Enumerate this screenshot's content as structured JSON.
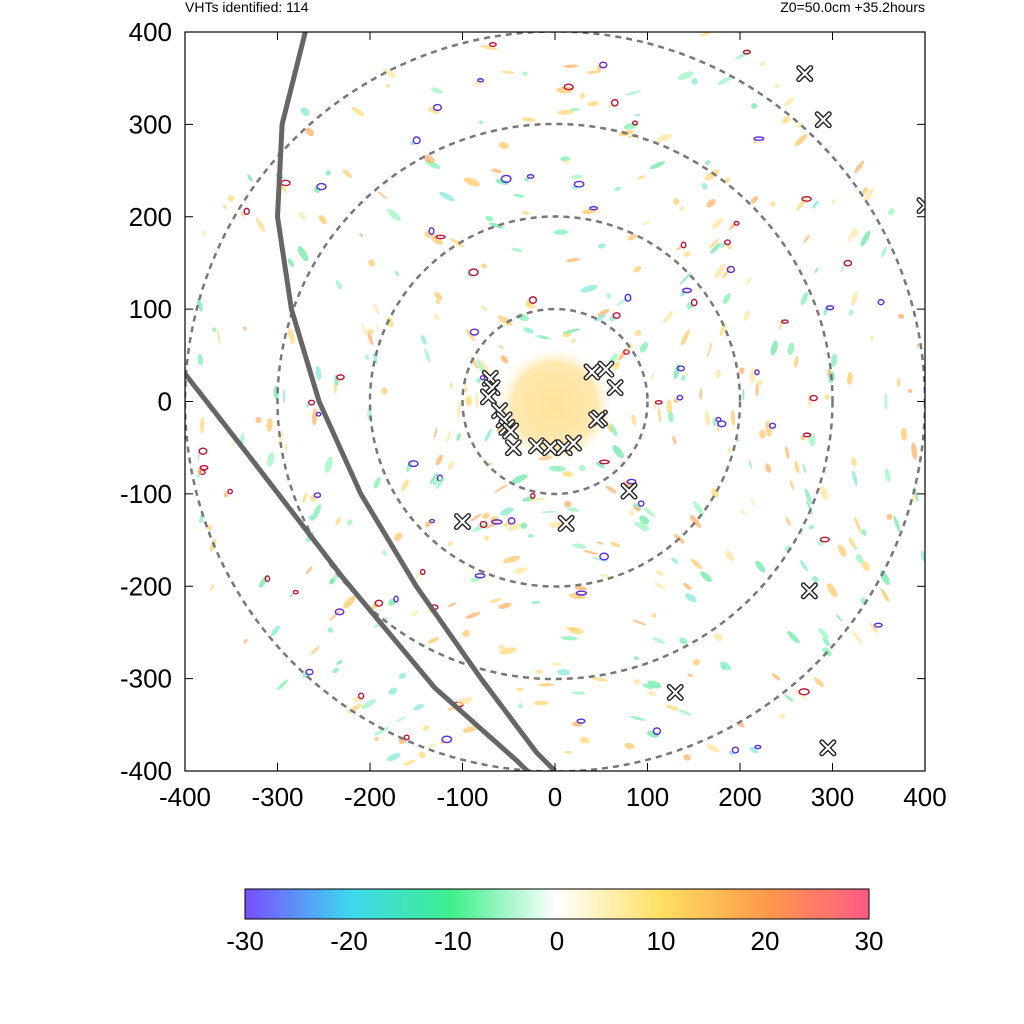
{
  "header": {
    "left_text": "VHTs identified: 114",
    "right_text": "Z0=50.0cm  +35.2hours"
  },
  "chart_data": {
    "type": "heatmap",
    "xlim": [
      -400,
      400
    ],
    "ylim": [
      -400,
      400
    ],
    "x_ticks": [
      -400,
      -300,
      -200,
      -100,
      0,
      100,
      200,
      300,
      400
    ],
    "y_ticks": [
      -400,
      -300,
      -200,
      -100,
      0,
      100,
      200,
      300,
      400
    ],
    "x_tick_labels": [
      "-400",
      "-300",
      "-200",
      "-100",
      "0",
      "100",
      "200",
      "300",
      "400"
    ],
    "y_tick_labels": [
      "-400",
      "-300",
      "-200",
      "-100",
      "0",
      "100",
      "200",
      "300",
      "400"
    ],
    "colorbar": {
      "range": [
        -30,
        30
      ],
      "ticks": [
        "-30",
        "-20",
        "-10",
        "0",
        "10",
        "20",
        "30"
      ],
      "colors": [
        "#7a4dff",
        "#3ed6f0",
        "#3ff08c",
        "#ffffff",
        "#ffe062",
        "#ff9a4a",
        "#ff5a84"
      ]
    },
    "range_rings": [
      100,
      200,
      300,
      400
    ],
    "ring_color": "#777777",
    "track_color": "#666666",
    "tracks": [
      {
        "x": [
          -270,
          -295,
          -300,
          -285,
          -255,
          -210,
          -150,
          -80,
          -20,
          0
        ],
        "y": [
          400,
          300,
          200,
          100,
          0,
          -100,
          -200,
          -300,
          -380,
          -400
        ]
      },
      {
        "x": [
          -400,
          -330,
          -230,
          -130,
          -40,
          -30
        ],
        "y": [
          30,
          -60,
          -190,
          -310,
          -390,
          -400
        ]
      }
    ],
    "vht_markers": {
      "x": [
        -70,
        -68,
        -72,
        -60,
        -55,
        -52,
        -48,
        -45,
        40,
        55,
        65,
        48,
        -20,
        -5,
        10,
        20,
        45,
        80,
        -100,
        12,
        270,
        290,
        400,
        275,
        130,
        295
      ],
      "y": [
        25,
        15,
        5,
        -10,
        -20,
        -28,
        -32,
        -50,
        32,
        35,
        15,
        -18,
        -48,
        -50,
        -50,
        -45,
        -20,
        -97,
        -130,
        -132,
        355,
        305,
        212,
        -205,
        -315,
        -375
      ]
    }
  }
}
